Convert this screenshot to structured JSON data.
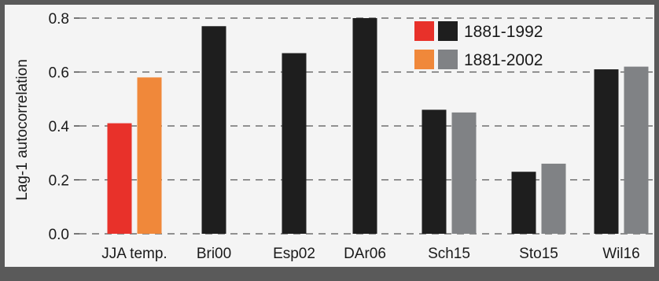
{
  "colors": {
    "background": "#5a5a5a",
    "plot_background": "#f4f4f4",
    "jja_early": "#e8312a",
    "jja_late": "#f0883a",
    "proxy_early": "#1e1e1e",
    "proxy_late": "#808285"
  },
  "chart_data": {
    "type": "bar",
    "ylabel": "Lag-1 autocorrelation",
    "ylim": [
      0.0,
      0.8
    ],
    "yticks": [
      "0.0",
      "0.2",
      "0.4",
      "0.6",
      "0.8"
    ],
    "grid": true,
    "legend_position": "top-right",
    "categories": [
      "JJA temp.",
      "Bri00",
      "Esp02",
      "DAr06",
      "Sch15",
      "Sto15",
      "Wil16"
    ],
    "series": [
      {
        "name": "1881-1992",
        "values": [
          0.41,
          0.77,
          0.67,
          0.8,
          0.46,
          0.23,
          0.61
        ]
      },
      {
        "name": "1881-2002",
        "values": [
          0.58,
          null,
          null,
          null,
          0.45,
          0.26,
          0.62
        ]
      }
    ]
  }
}
